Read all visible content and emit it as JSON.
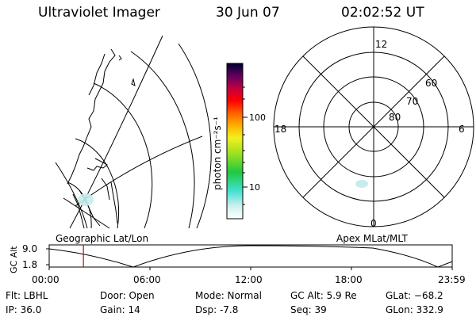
{
  "header": {
    "title": "Ultraviolet Imager",
    "date": "30 Jun 07",
    "time": "02:02:52 UT"
  },
  "colorbar": {
    "label": "photon cm⁻²s⁻¹",
    "ticks": [
      "100",
      "10"
    ]
  },
  "panels": {
    "left_label": "Geographic Lat/Lon",
    "right_label": "Apex MLat/MLT"
  },
  "polar_plot": {
    "mlt_labels": {
      "top": "12",
      "right": "6",
      "bottom": "0",
      "left": "18"
    },
    "lat_labels": [
      "60",
      "70",
      "80"
    ]
  },
  "altitude_plot": {
    "ylabel": "GC Alt",
    "y_ticks": [
      "9.0",
      "1.8"
    ],
    "x_ticks": [
      "00:00",
      "06:00",
      "12:00",
      "18:00",
      "23:59"
    ],
    "current_time_fraction": 0.085
  },
  "info": {
    "filter": "Flt: LBHL",
    "ip": "IP: 36.0",
    "door": "Door: Open",
    "gain": "Gain: 14",
    "mode": "Mode: Normal",
    "dsp": "Dsp:    -7.8",
    "gc_alt": "GC Alt: 5.9 Re",
    "seq": "Seq: 39",
    "glat": "GLat: −68.2",
    "glon": "GLon: 332.9"
  }
}
